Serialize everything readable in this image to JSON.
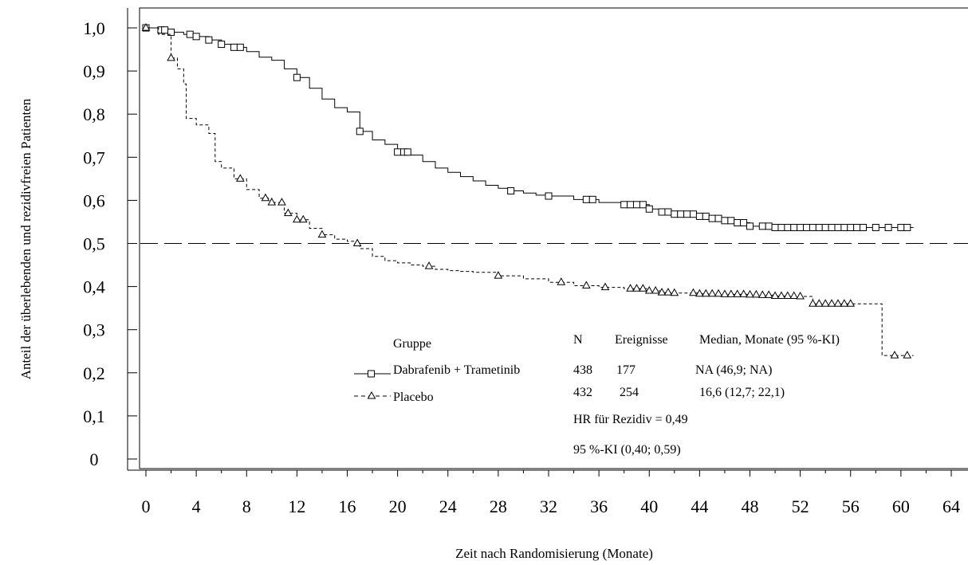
{
  "chart_data": {
    "type": "line",
    "title": "",
    "xlabel": "Zeit nach Randomisierung (Monate)",
    "ylabel": "Anteil der überlebenden und rezidivfreien Patienten",
    "xlim": [
      0,
      64
    ],
    "ylim": [
      0,
      1.0
    ],
    "x_ticks": [
      0,
      4,
      8,
      12,
      16,
      20,
      24,
      28,
      32,
      36,
      40,
      44,
      48,
      52,
      56,
      60,
      64
    ],
    "x_tick_labels": [
      "0",
      "4",
      "8",
      "12",
      "16",
      "20",
      "24",
      "28",
      "32",
      "36",
      "40",
      "44",
      "48",
      "52",
      "56",
      "60",
      "64"
    ],
    "y_ticks": [
      1.0,
      0.9,
      0.8,
      0.7,
      0.6,
      0.5,
      0.4,
      0.3,
      0.2,
      0.1,
      0
    ],
    "y_tick_labels": [
      "1,0",
      "0,9",
      "0,8",
      "0,7",
      "0,6",
      "0,5",
      "0,4",
      "0,3",
      "0,2",
      "0,1",
      "0"
    ],
    "reference_line": 0.5,
    "grid": false,
    "legend": {
      "position": "bottom-center",
      "headers": {
        "group": "Gruppe",
        "n": "N",
        "events": "Ereignisse",
        "median": "Median, Monate (95 %-KI)"
      },
      "rows": [
        {
          "label": "Dabrafenib + Trametinib",
          "n": "438",
          "events": "177",
          "median": "NA (46,9; NA)"
        },
        {
          "label": "Placebo",
          "n": "432",
          "events": "254",
          "median": "16,6 (12,7; 22,1)"
        }
      ],
      "notes": [
        "HR für Rezidiv = 0,49",
        "95 %-KI (0,40; 0,59)"
      ]
    },
    "series": [
      {
        "name": "Dabrafenib + Trametinib",
        "line_style": "solid",
        "marker": "square",
        "color": "#000000",
        "points": [
          [
            0,
            1.0
          ],
          [
            1,
            0.995
          ],
          [
            2,
            0.99
          ],
          [
            3,
            0.985
          ],
          [
            4,
            0.98
          ],
          [
            5,
            0.972
          ],
          [
            6,
            0.962
          ],
          [
            7,
            0.955
          ],
          [
            8,
            0.945
          ],
          [
            9,
            0.932
          ],
          [
            10,
            0.925
          ],
          [
            11,
            0.905
          ],
          [
            12,
            0.885
          ],
          [
            13,
            0.86
          ],
          [
            14,
            0.835
          ],
          [
            15,
            0.815
          ],
          [
            16,
            0.805
          ],
          [
            17,
            0.76
          ],
          [
            18,
            0.74
          ],
          [
            19,
            0.73
          ],
          [
            20,
            0.712
          ],
          [
            21,
            0.705
          ],
          [
            22,
            0.69
          ],
          [
            23,
            0.675
          ],
          [
            24,
            0.665
          ],
          [
            25,
            0.655
          ],
          [
            26,
            0.645
          ],
          [
            27,
            0.635
          ],
          [
            28,
            0.628
          ],
          [
            29,
            0.622
          ],
          [
            30,
            0.617
          ],
          [
            31,
            0.612
          ],
          [
            32,
            0.61
          ],
          [
            34,
            0.602
          ],
          [
            36,
            0.595
          ],
          [
            38,
            0.59
          ],
          [
            40,
            0.58
          ],
          [
            41,
            0.573
          ],
          [
            42,
            0.568
          ],
          [
            44,
            0.563
          ],
          [
            45,
            0.558
          ],
          [
            46,
            0.553
          ],
          [
            47,
            0.548
          ],
          [
            48,
            0.54
          ],
          [
            50,
            0.537
          ],
          [
            52,
            0.537
          ],
          [
            54,
            0.537
          ],
          [
            56,
            0.537
          ],
          [
            58,
            0.537
          ],
          [
            61,
            0.537
          ]
        ],
        "censor_x": [
          0,
          1.2,
          1.5,
          2,
          3.5,
          4,
          5,
          6,
          7,
          7.5,
          12,
          17,
          20,
          20.5,
          20.8,
          29,
          32,
          35,
          35.5,
          38,
          38.5,
          39,
          39.5,
          40,
          41,
          41.5,
          42,
          42.5,
          43,
          43.5,
          44,
          44.5,
          45,
          45.5,
          46,
          46.5,
          47,
          47.5,
          48,
          49,
          49.5,
          50,
          50.5,
          51,
          51.5,
          52,
          52.5,
          53,
          53.5,
          54,
          54.5,
          55,
          55.5,
          56,
          56.5,
          57,
          58,
          59,
          60,
          60.5
        ]
      },
      {
        "name": "Placebo",
        "line_style": "dashed",
        "marker": "triangle",
        "color": "#000000",
        "points": [
          [
            0,
            1.0
          ],
          [
            1,
            0.985
          ],
          [
            2,
            0.93
          ],
          [
            2.5,
            0.905
          ],
          [
            3,
            0.87
          ],
          [
            3.2,
            0.79
          ],
          [
            4,
            0.775
          ],
          [
            5,
            0.755
          ],
          [
            5.5,
            0.69
          ],
          [
            6,
            0.675
          ],
          [
            7,
            0.65
          ],
          [
            8,
            0.625
          ],
          [
            9,
            0.605
          ],
          [
            10,
            0.595
          ],
          [
            11,
            0.57
          ],
          [
            12,
            0.555
          ],
          [
            13,
            0.535
          ],
          [
            14,
            0.52
          ],
          [
            15,
            0.51
          ],
          [
            16,
            0.505
          ],
          [
            16.6,
            0.5
          ],
          [
            17,
            0.488
          ],
          [
            18,
            0.47
          ],
          [
            19,
            0.46
          ],
          [
            20,
            0.455
          ],
          [
            21,
            0.45
          ],
          [
            22,
            0.447
          ],
          [
            23,
            0.44
          ],
          [
            24,
            0.437
          ],
          [
            25,
            0.435
          ],
          [
            26,
            0.433
          ],
          [
            28,
            0.425
          ],
          [
            30,
            0.418
          ],
          [
            32,
            0.41
          ],
          [
            34,
            0.402
          ],
          [
            36,
            0.398
          ],
          [
            38,
            0.395
          ],
          [
            40,
            0.39
          ],
          [
            41,
            0.386
          ],
          [
            42,
            0.385
          ],
          [
            44,
            0.383
          ],
          [
            46,
            0.382
          ],
          [
            48,
            0.381
          ],
          [
            49,
            0.38
          ],
          [
            50,
            0.378
          ],
          [
            52,
            0.377
          ],
          [
            53,
            0.36
          ],
          [
            56,
            0.36
          ],
          [
            58,
            0.36
          ],
          [
            58.5,
            0.24
          ],
          [
            61,
            0.24
          ]
        ],
        "censor_x": [
          0,
          2,
          7.5,
          9.5,
          10,
          10.8,
          11.3,
          12,
          12.5,
          14,
          16.8,
          22.5,
          28,
          33,
          35,
          36.5,
          38.5,
          39,
          39.5,
          40,
          40.5,
          41,
          41.5,
          42,
          43.5,
          44,
          44.5,
          45,
          45.5,
          46,
          46.5,
          47,
          47.5,
          48,
          48.5,
          49,
          49.5,
          50,
          50.5,
          51,
          51.5,
          52,
          53,
          53.5,
          54,
          54.5,
          55,
          55.5,
          56,
          59.5,
          60.5
        ]
      }
    ]
  }
}
